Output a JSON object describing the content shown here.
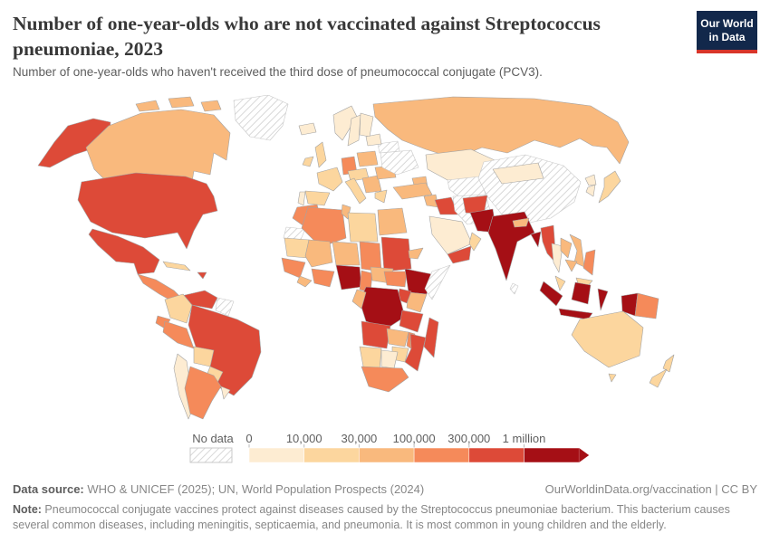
{
  "header": {
    "title": "Number of one-year-olds who are not vaccinated against Streptococcus pneumoniae, 2023",
    "subtitle": "Number of one-year-olds who haven't received the third dose of pneumococcal conjugate (PCV3).",
    "logo_line1": "Our World",
    "logo_line2": "in Data",
    "logo_bg": "#12284b",
    "logo_accent": "#d8352a"
  },
  "legend": {
    "no_data_label": "No data",
    "tick_labels": [
      "0",
      "10,000",
      "30,000",
      "100,000",
      "300,000",
      "1 million"
    ],
    "label_color": "#5f5f5f"
  },
  "chart_data": {
    "type": "choropleth",
    "title": "Number of one-year-olds who are not vaccinated against Streptococcus pneumoniae, 2023",
    "unit_bins": [
      "0–10,000",
      "10,000–30,000",
      "30,000–100,000",
      "100,000–300,000",
      "300,000–1 million",
      "1 million+"
    ],
    "bin_colors": [
      "#fdecd2",
      "#fcd69e",
      "#f9b97d",
      "#f58a5a",
      "#dd4a38",
      "#a50f15"
    ],
    "no_data_pattern": "diagonal-hatch",
    "border_color": "#a3a3a3",
    "nodata_border": "#c9c9c9",
    "regions": {
      "alaska": 5,
      "canada": 3,
      "arctic1": 3,
      "arctic2": 3,
      "arctic3": 3,
      "greenland": "nd",
      "usa": 5,
      "mexico": 5,
      "central-america": 4,
      "cuba": 2,
      "hispaniola": 5,
      "venezuela": 5,
      "colombia": 2,
      "guyanas": "nd",
      "brazil": 5,
      "ecuador": 4,
      "peru": 4,
      "bolivia": 2,
      "paraguay": 2,
      "chile": 1,
      "argentina": 4,
      "uruguay": 1,
      "iceland": 1,
      "ireland": 2,
      "uk": 2,
      "norway": 1,
      "sweden": 1,
      "finland": 1,
      "france": 2,
      "spain": 2,
      "portugal": 1,
      "germany": 4,
      "poland": 3,
      "czech-austria": 2,
      "italy": 2,
      "balkans": 3,
      "romania": 3,
      "ukraine": "nd",
      "belarus": "nd",
      "baltics": 1,
      "greece": 2,
      "russia": 3,
      "kazakhstan": 1,
      "central-asia": "nd",
      "caucasus": 3,
      "turkey": 3,
      "levant": 3,
      "iraq": 5,
      "iran": "nd",
      "saudi-arabia": 1,
      "yemen": 5,
      "oman": 2,
      "morocco": 4,
      "western-sahara": "nd",
      "algeria": 4,
      "tunisia": 3,
      "libya": 2,
      "egypt": 3,
      "mauritania": 2,
      "mali": 3,
      "niger": 3,
      "chad": 4,
      "sudan": 5,
      "eritrea": 3,
      "senegal-guinea": 4,
      "liberia": 3,
      "ivory-ghana": 4,
      "nigeria": 6,
      "cameroon": 4,
      "car": 3,
      "south-sudan": 4,
      "ethiopia": 6,
      "somalia": "nd",
      "kenya": 3,
      "uganda": 5,
      "drc": 6,
      "congo-gabon": 3,
      "tanzania": 5,
      "angola": 5,
      "zambia": 3,
      "malawi": 4,
      "mozambique": 5,
      "zimbabwe": 2,
      "namibia": 2,
      "botswana": 1,
      "south-africa": 4,
      "madagascar": 5,
      "china": "nd",
      "mongolia": 1,
      "afghanistan": 5,
      "pakistan": 6,
      "india": 6,
      "nepal": 3,
      "bangladesh": 6,
      "myanmar": 5,
      "thailand": 1,
      "laos": 3,
      "vietnam": 3,
      "cambodia": 3,
      "malaysia": 2,
      "sumatra": 6,
      "java": 6,
      "borneo-malaysia": 2,
      "borneo-indonesia": 6,
      "sulawesi": 6,
      "west-papua": 6,
      "png": 4,
      "philippines": 4,
      "japan": 2,
      "south-korea": 1,
      "north-korea": 1,
      "sri-lanka": "nd",
      "australia": 2,
      "tasmania": 2,
      "nz-north": 2,
      "nz-south": 2
    }
  },
  "footer": {
    "source_label": "Data source:",
    "source_text": " WHO & UNICEF (2025); UN, World Population Prospects (2024)",
    "link_text": "OurWorldinData.org/vaccination | CC BY",
    "note_label": "Note:",
    "note_text": " Pneumococcal conjugate vaccines protect against diseases caused by the Streptococcus pneumoniae bacterium. This bacterium causes several common diseases, including meningitis, septicaemia, and pneumonia. It is most common in young children and the elderly."
  }
}
